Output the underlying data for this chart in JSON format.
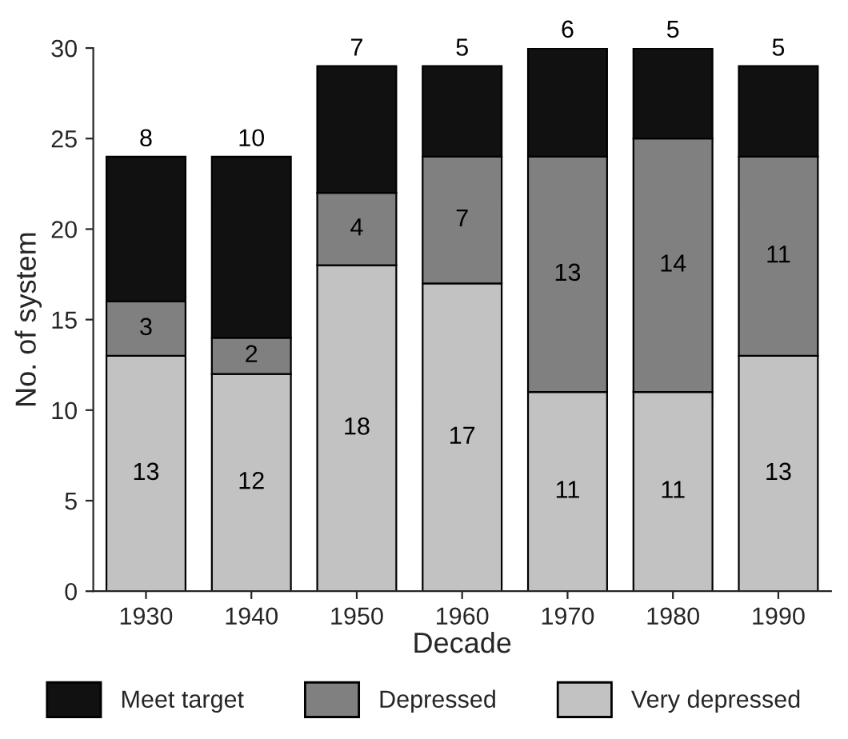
{
  "chart_data": {
    "type": "bar",
    "stacked": true,
    "xlabel": "Decade",
    "ylabel": "No. of system",
    "categories": [
      "1930",
      "1940",
      "1950",
      "1960",
      "1970",
      "1980",
      "1990"
    ],
    "series": [
      {
        "name": "Very depressed",
        "color": "#c2c2c2",
        "values": [
          13,
          12,
          18,
          17,
          11,
          11,
          13
        ]
      },
      {
        "name": "Depressed",
        "color": "#808080",
        "values": [
          3,
          2,
          4,
          7,
          13,
          14,
          11
        ]
      },
      {
        "name": "Meet target",
        "color": "#111111",
        "values": [
          8,
          10,
          7,
          5,
          6,
          5,
          5
        ]
      }
    ],
    "ylim": [
      0,
      30
    ],
    "yticks": [
      0,
      5,
      10,
      15,
      20,
      25,
      30
    ],
    "grid": false,
    "legend": "bottom",
    "data_labels": true
  }
}
